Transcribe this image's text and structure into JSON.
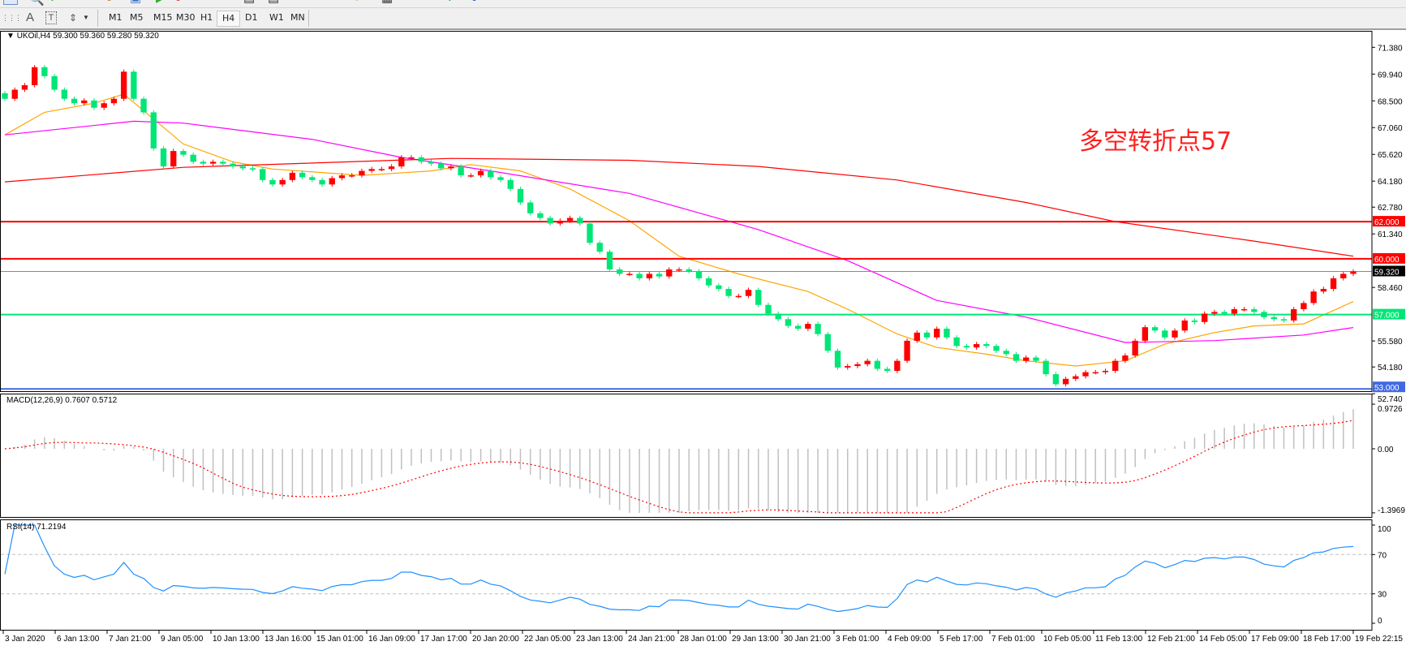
{
  "toolbar": {
    "timeframes": [
      "M1",
      "M5",
      "M15",
      "M30",
      "H1",
      "H4",
      "D1",
      "W1",
      "MN"
    ],
    "active_timeframe": "H4",
    "icons": [
      "grid-icon",
      "text-icon",
      "text-label-icon",
      "arrows-icon",
      "dropdown-icon"
    ],
    "text_tool_label": "A",
    "label_tool_label": "T"
  },
  "chart_header": {
    "symbol": "UKOil,H4",
    "ohlc": "59.300 59.360 59.280 59.320"
  },
  "annotation": "多空转折点57",
  "colors": {
    "bull_candle": "#ff0000",
    "bear_candle": "#00e676",
    "ma_fast": "#ffa500",
    "ma_mid": "#ff00ff",
    "ma_slow": "#ff0000",
    "level_62": "#ff0000",
    "level_60": "#ff0000",
    "level_57": "#00e676",
    "level_53": "#4169e1",
    "macd_hist": "#c0c0c0",
    "macd_signal": "#ff0000",
    "rsi": "#1e90ff"
  },
  "chart_data": [
    {
      "type": "candlestick",
      "title": "UKOil,H4",
      "ylim": [
        52.74,
        71.38
      ],
      "price_ticks": [
        "71.380",
        "69.940",
        "68.500",
        "67.060",
        "65.620",
        "64.180",
        "62.780",
        "61.340",
        "58.460",
        "55.580",
        "54.180",
        "52.740"
      ],
      "price_tick_values": [
        71.38,
        69.94,
        68.5,
        67.06,
        65.62,
        64.18,
        62.78,
        61.34,
        58.46,
        55.58,
        54.18,
        52.74
      ],
      "horizontal_levels": [
        {
          "value": 62.0,
          "label": "62.000",
          "color": "#ff0000"
        },
        {
          "value": 60.0,
          "label": "60.000",
          "color": "#ff0000"
        },
        {
          "value": 57.0,
          "label": "57.000",
          "color": "#00e676"
        },
        {
          "value": 53.0,
          "label": "53.000",
          "color": "#4169e1"
        }
      ],
      "current_price": {
        "value": 59.32,
        "label": "59.320"
      },
      "time_labels": [
        "3 Jan 2020",
        "6 Jan 13:00",
        "7 Jan 21:00",
        "9 Jan 05:00",
        "10 Jan 13:00",
        "13 Jan 16:00",
        "15 Jan 01:00",
        "16 Jan 09:00",
        "17 Jan 17:00",
        "20 Jan 20:00",
        "22 Jan 05:00",
        "23 Jan 13:00",
        "24 Jan 21:00",
        "28 Jan 01:00",
        "29 Jan 13:00",
        "30 Jan 21:00",
        "3 Feb 01:00",
        "4 Feb 09:00",
        "5 Feb 17:00",
        "7 Feb 01:00",
        "10 Feb 05:00",
        "11 Feb 13:00",
        "12 Feb 21:00",
        "14 Feb 05:00",
        "17 Feb 09:00",
        "18 Feb 17:00",
        "19 Feb 22:15"
      ],
      "closes": [
        68.61,
        69.1,
        69.34,
        70.31,
        69.83,
        69.1,
        68.61,
        68.37,
        68.52,
        68.13,
        68.37,
        68.61,
        70.07,
        68.61,
        67.88,
        65.94,
        64.97,
        65.8,
        65.6,
        65.22,
        65.12,
        65.22,
        65.12,
        64.97,
        64.87,
        64.83,
        64.24,
        64.0,
        64.24,
        64.63,
        64.39,
        64.24,
        64.0,
        64.34,
        64.49,
        64.49,
        64.73,
        64.83,
        64.83,
        64.97,
        65.46,
        65.46,
        65.22,
        65.12,
        64.87,
        64.97,
        64.49,
        64.49,
        64.73,
        64.39,
        64.24,
        63.76,
        63.03,
        62.45,
        62.2,
        61.9,
        62.05,
        62.2,
        61.9,
        60.86,
        60.38,
        59.43,
        59.19,
        59.19,
        58.95,
        59.19,
        59.05,
        59.43,
        59.43,
        59.33,
        58.95,
        58.57,
        58.38,
        58.0,
        58.0,
        58.33,
        57.52,
        57.05,
        56.75,
        56.39,
        56.24,
        56.5,
        55.95,
        55.05,
        54.15,
        54.23,
        54.33,
        54.51,
        54.08,
        53.97,
        54.51,
        55.59,
        56.03,
        55.77,
        56.24,
        55.77,
        55.31,
        55.23,
        55.41,
        55.31,
        55.05,
        54.87,
        54.51,
        54.69,
        54.51,
        53.79,
        53.25,
        53.54,
        53.68,
        53.9,
        53.9,
        53.97,
        54.51,
        54.8,
        55.59,
        56.32,
        56.14,
        55.77,
        56.14,
        56.68,
        56.6,
        57.05,
        57.14,
        57.05,
        57.29,
        57.29,
        57.14,
        56.86,
        56.75,
        56.68,
        57.29,
        57.62,
        58.24,
        58.38,
        58.95,
        59.19,
        59.32
      ],
      "moving_averages": [
        {
          "color": "#ffa500",
          "points": [
            [
              0,
              66.67
            ],
            [
              4,
              67.88
            ],
            [
              9,
              68.37
            ],
            [
              12,
              68.86
            ],
            [
              18,
              66.18
            ],
            [
              23,
              65.22
            ],
            [
              27,
              64.83
            ],
            [
              36,
              64.49
            ],
            [
              43,
              64.73
            ],
            [
              47,
              65.07
            ],
            [
              52,
              64.73
            ],
            [
              57,
              63.76
            ],
            [
              63,
              62.05
            ],
            [
              68,
              60.14
            ],
            [
              74,
              59.19
            ],
            [
              81,
              58.24
            ],
            [
              85,
              57.29
            ],
            [
              90,
              55.95
            ],
            [
              94,
              55.23
            ],
            [
              99,
              54.87
            ],
            [
              103,
              54.51
            ],
            [
              108,
              54.23
            ],
            [
              113,
              54.51
            ],
            [
              117,
              55.41
            ],
            [
              122,
              56.03
            ],
            [
              126,
              56.39
            ],
            [
              131,
              56.5
            ],
            [
              136,
              57.7
            ]
          ]
        },
        {
          "color": "#ff00ff",
          "points": [
            [
              0,
              66.67
            ],
            [
              13,
              67.4
            ],
            [
              18,
              67.3
            ],
            [
              31,
              66.43
            ],
            [
              40,
              65.46
            ],
            [
              49,
              64.73
            ],
            [
              63,
              63.52
            ],
            [
              76,
              61.57
            ],
            [
              85,
              59.9
            ],
            [
              94,
              57.76
            ],
            [
              103,
              56.86
            ],
            [
              113,
              55.5
            ],
            [
              122,
              55.6
            ],
            [
              131,
              55.9
            ],
            [
              136,
              56.3
            ]
          ]
        },
        {
          "color": "#ff0000",
          "points": [
            [
              0,
              64.14
            ],
            [
              18,
              64.92
            ],
            [
              45,
              65.4
            ],
            [
              63,
              65.3
            ],
            [
              76,
              64.97
            ],
            [
              90,
              64.24
            ],
            [
              103,
              63.03
            ],
            [
              112,
              62.0
            ],
            [
              126,
              60.95
            ],
            [
              136,
              60.14
            ]
          ]
        }
      ]
    },
    {
      "type": "bar",
      "title": "MACD(12,26,9) 0.7607 0.5712",
      "ylim": [
        -1.3969,
        0.9726
      ],
      "ticks": [
        "0.9726",
        "0.00",
        "-1.3969"
      ]
    },
    {
      "type": "line",
      "title": "RSI(14) 71.2194",
      "ylim": [
        0,
        100
      ],
      "ticks": [
        "100",
        "70",
        "30",
        "0"
      ],
      "levels": [
        70,
        30
      ]
    }
  ]
}
